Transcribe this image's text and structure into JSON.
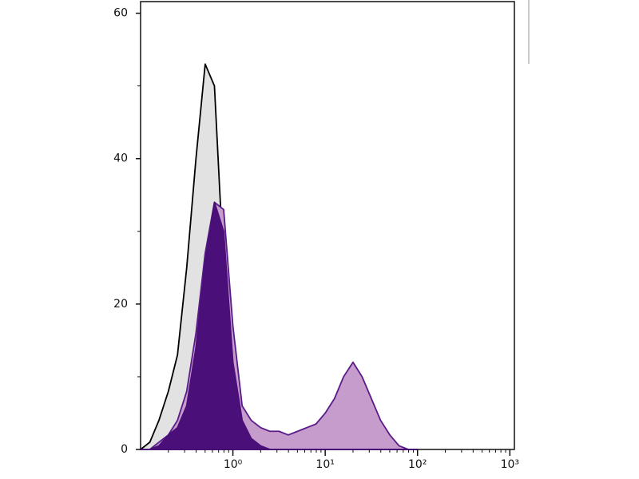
{
  "chart_data": {
    "type": "histogram-overlay",
    "xscale": "log",
    "xlim": [
      0.1,
      1120
    ],
    "ylim": [
      0,
      61.6
    ],
    "xticks": [
      {
        "value": 1,
        "label": "10⁰"
      },
      {
        "value": 10,
        "label": "10¹"
      },
      {
        "value": 100,
        "label": "10²"
      },
      {
        "value": 1000,
        "label": "10³"
      }
    ],
    "xminorticks": [
      0.2,
      0.3,
      0.4,
      0.5,
      0.6,
      0.7,
      0.8,
      0.9,
      2,
      3,
      4,
      5,
      6,
      7,
      8,
      9,
      20,
      30,
      40,
      50,
      60,
      70,
      80,
      90,
      200,
      300,
      400,
      500,
      600,
      700,
      800,
      900
    ],
    "yticks": [
      0,
      20,
      40,
      60
    ],
    "yminorticks": [
      10,
      30,
      50
    ],
    "x": [
      0.1,
      0.126,
      0.158,
      0.2,
      0.251,
      0.316,
      0.398,
      0.501,
      0.631,
      0.794,
      1,
      1.26,
      1.58,
      2,
      2.51,
      3.16,
      3.98,
      5.01,
      6.31,
      7.94,
      10,
      12.6,
      15.8,
      20,
      25.1,
      31.6,
      39.8,
      50.1,
      63.1,
      79.4,
      100
    ],
    "series": [
      {
        "color": "#000000",
        "fill": "#e2e2e2",
        "values": [
          0,
          1,
          4,
          8,
          13,
          25,
          40,
          53,
          50,
          25,
          8,
          3,
          1,
          0.5,
          0,
          0,
          0,
          0,
          0,
          0,
          0,
          0,
          0,
          0,
          0,
          0,
          0,
          0,
          0,
          0,
          0
        ]
      },
      {
        "color": "#5a1a8a",
        "fill": "#c59ccb",
        "values": [
          0,
          0,
          1,
          2,
          4,
          8,
          16,
          27,
          34,
          33,
          17,
          6,
          4,
          3,
          2.5,
          2.5,
          2,
          2.5,
          3,
          3.5,
          5,
          7,
          10,
          12,
          10,
          7,
          4,
          2,
          0.5,
          0,
          0
        ]
      },
      {
        "color": "#4a0f78",
        "fill": "#4a0f78",
        "values": [
          0,
          0,
          0.5,
          2,
          3,
          6,
          14,
          26,
          34,
          30,
          12,
          4,
          1.5,
          0.5,
          0,
          0,
          0,
          0,
          0,
          0,
          0,
          0,
          0,
          0,
          0,
          0,
          0,
          0,
          0,
          0,
          0
        ]
      }
    ]
  }
}
